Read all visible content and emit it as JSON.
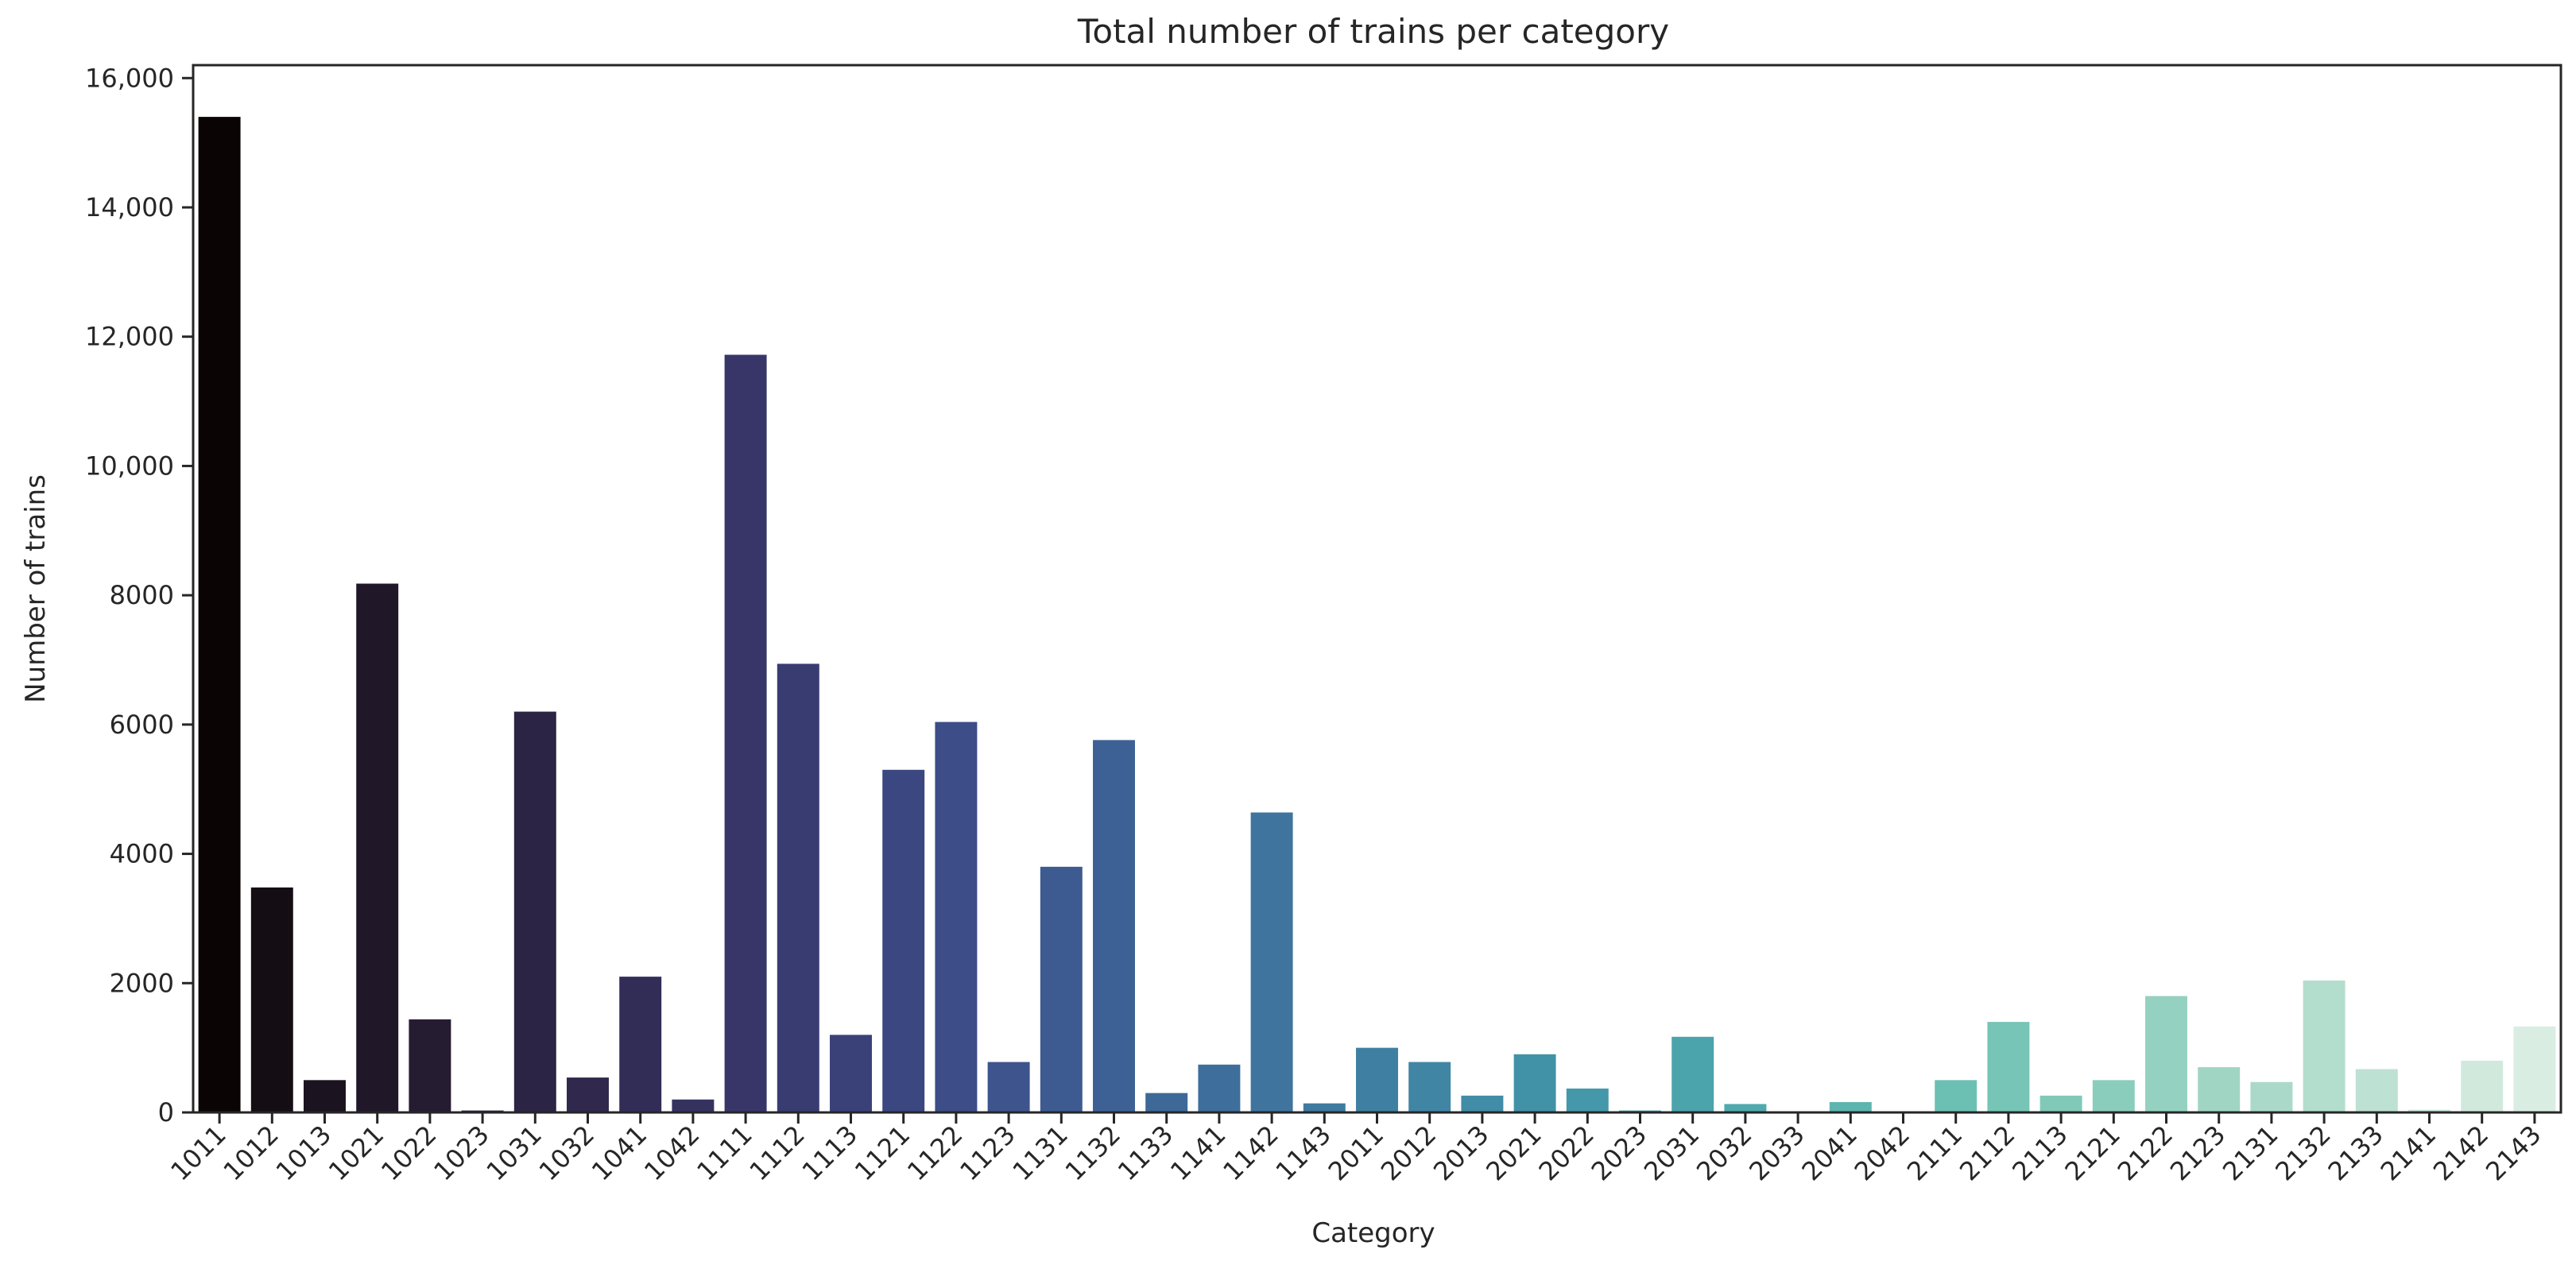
{
  "chart_data": {
    "type": "bar",
    "title": "Total number of trains per category",
    "xlabel": "Category",
    "ylabel": "Number of trains",
    "ylim": [
      0,
      16200
    ],
    "y_ticks": [
      {
        "value": 0,
        "label": "0"
      },
      {
        "value": 2000,
        "label": "2000"
      },
      {
        "value": 4000,
        "label": "4000"
      },
      {
        "value": 6000,
        "label": "6000"
      },
      {
        "value": 8000,
        "label": "8000"
      },
      {
        "value": 10000,
        "label": "10,000"
      },
      {
        "value": 12000,
        "label": "12,000"
      },
      {
        "value": 14000,
        "label": "14,000"
      },
      {
        "value": 16000,
        "label": "16,000"
      }
    ],
    "grid": false,
    "palette": "dark-to-light (black, indigo, blue, teal, mint)",
    "categories": [
      "1011",
      "1012",
      "1013",
      "1021",
      "1022",
      "1023",
      "1031",
      "1032",
      "1041",
      "1042",
      "1111",
      "1112",
      "1113",
      "1121",
      "1122",
      "1123",
      "1131",
      "1132",
      "1133",
      "1141",
      "1142",
      "1143",
      "2011",
      "2012",
      "2013",
      "2021",
      "2022",
      "2023",
      "2031",
      "2032",
      "2033",
      "2041",
      "2042",
      "2111",
      "2112",
      "2113",
      "2121",
      "2122",
      "2123",
      "2131",
      "2132",
      "2133",
      "2141",
      "2142",
      "2143"
    ],
    "values": [
      15400,
      3480,
      500,
      8180,
      1440,
      30,
      6200,
      540,
      2100,
      200,
      11720,
      6940,
      1200,
      5300,
      6040,
      780,
      3800,
      5760,
      300,
      740,
      4640,
      140,
      1000,
      780,
      260,
      900,
      370,
      30,
      1170,
      130,
      10,
      160,
      10,
      500,
      1400,
      260,
      500,
      1800,
      700,
      470,
      2040,
      670,
      40,
      800,
      1330
    ],
    "colors": [
      "#0b0405",
      "#150d14",
      "#1b131f",
      "#201829",
      "#251c32",
      "#28203b",
      "#2c2444",
      "#30284d",
      "#322d57",
      "#353260",
      "#383669",
      "#393c71",
      "#3a4179",
      "#3b4781",
      "#3c4d87",
      "#3d548d",
      "#3d5b91",
      "#3d6195",
      "#3e6898",
      "#3e6e9b",
      "#3f749e",
      "#3f7aa0",
      "#3f80a2",
      "#4086a4",
      "#418ca6",
      "#4292a7",
      "#4498a9",
      "#479eaa",
      "#4ba4ab",
      "#50aaad",
      "#56b0ae",
      "#5cb5af",
      "#64bbb1",
      "#6cc0b3",
      "#76c5b6",
      "#80c9b9",
      "#8bcdbc",
      "#95d1c0",
      "#a0d5c4",
      "#aad9c9",
      "#b3ddcd",
      "#bde1d2",
      "#c7e5d7",
      "#d1e9dd",
      "#daede3"
    ]
  }
}
